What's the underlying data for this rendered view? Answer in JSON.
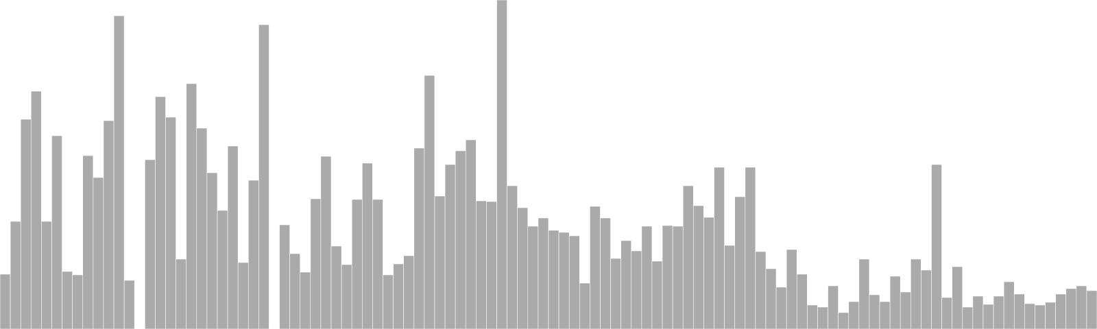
{
  "chart_data": {
    "type": "bar",
    "title": "",
    "xlabel": "",
    "ylabel": "",
    "grid": false,
    "legend": "none",
    "axes_visible": false,
    "ylim": [
      0,
      480
    ],
    "bar_color": "#aaaaaa",
    "bar_edge_color": "#ffffff",
    "values": [
      80,
      157,
      306,
      347,
      157,
      282,
      84,
      79,
      253,
      221,
      304,
      457,
      71,
      null,
      247,
      339,
      309,
      102,
      358,
      293,
      228,
      173,
      267,
      97,
      217,
      444,
      null,
      152,
      110,
      83,
      190,
      252,
      121,
      94,
      189,
      242,
      189,
      79,
      95,
      107,
      264,
      370,
      194,
      240,
      260,
      276,
      187,
      186,
      480,
      209,
      177,
      150,
      162,
      144,
      141,
      136,
      67,
      179,
      162,
      103,
      129,
      114,
      150,
      99,
      151,
      150,
      209,
      180,
      163,
      236,
      122,
      193,
      236,
      113,
      88,
      61,
      116,
      80,
      35,
      32,
      63,
      24,
      40,
      102,
      50,
      40,
      77,
      54,
      102,
      86,
      240,
      46,
      91,
      32,
      48,
      36,
      48,
      69,
      51,
      37,
      35,
      39,
      51,
      59,
      63,
      56
    ]
  }
}
